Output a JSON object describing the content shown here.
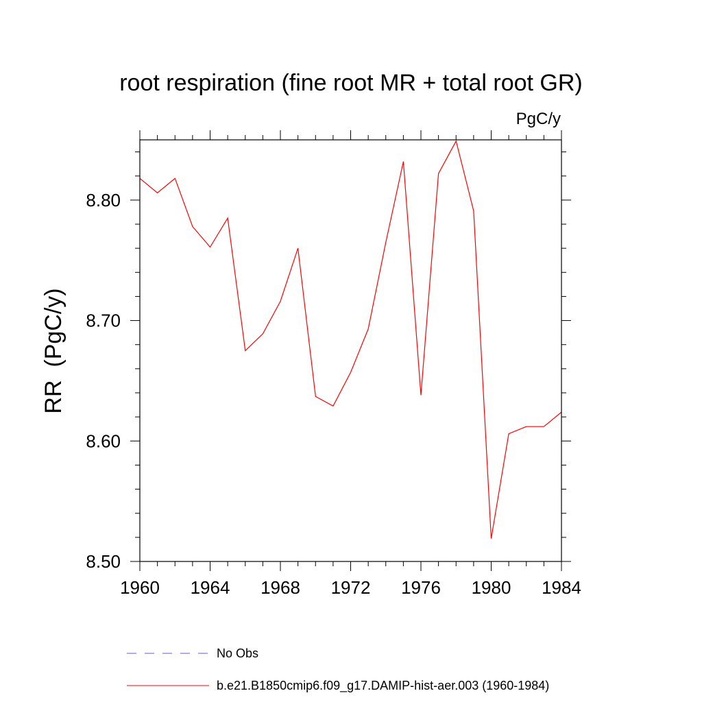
{
  "chart_data": {
    "type": "line",
    "title": "root respiration (fine root MR + total root GR)",
    "units_label": "PgC/y",
    "ylabel": "RR  (PgC/y)",
    "xlabel": "",
    "xlim": [
      1960,
      1984
    ],
    "ylim": [
      8.5,
      8.85
    ],
    "x_ticks": [
      1960,
      1964,
      1968,
      1972,
      1976,
      1980,
      1984
    ],
    "x_tick_labels": [
      "1960",
      "1964",
      "1968",
      "1972",
      "1976",
      "1980",
      "1984"
    ],
    "y_ticks": [
      8.5,
      8.6,
      8.7,
      8.8
    ],
    "y_tick_labels": [
      "8.50",
      "8.60",
      "8.70",
      "8.80"
    ],
    "grid": false,
    "legend_position": "bottom",
    "series": [
      {
        "name": "b.e21.B1850cmip6.f09_g17.DAMIP-hist-aer.003 (1960-1984)",
        "color": "#ff0000",
        "style": "solid",
        "x": [
          1960,
          1961,
          1962,
          1963,
          1964,
          1965,
          1966,
          1967,
          1968,
          1969,
          1970,
          1971,
          1972,
          1973,
          1974,
          1975,
          1976,
          1977,
          1978,
          1979,
          1980,
          1981,
          1982,
          1983,
          1984
        ],
        "values": [
          8.818,
          8.806,
          8.818,
          8.778,
          8.761,
          8.785,
          8.675,
          8.689,
          8.716,
          8.76,
          8.637,
          8.629,
          8.657,
          8.693,
          8.765,
          8.832,
          8.638,
          8.822,
          8.849,
          8.791,
          8.519,
          8.606,
          8.612,
          8.612,
          8.624
        ]
      }
    ],
    "legend": [
      {
        "label": "No Obs",
        "color": "#6a5acd",
        "style": "dashed"
      },
      {
        "label": "b.e21.B1850cmip6.f09_g17.DAMIP-hist-aer.003 (1960-1984)",
        "color": "#ff0000",
        "style": "solid"
      }
    ]
  }
}
